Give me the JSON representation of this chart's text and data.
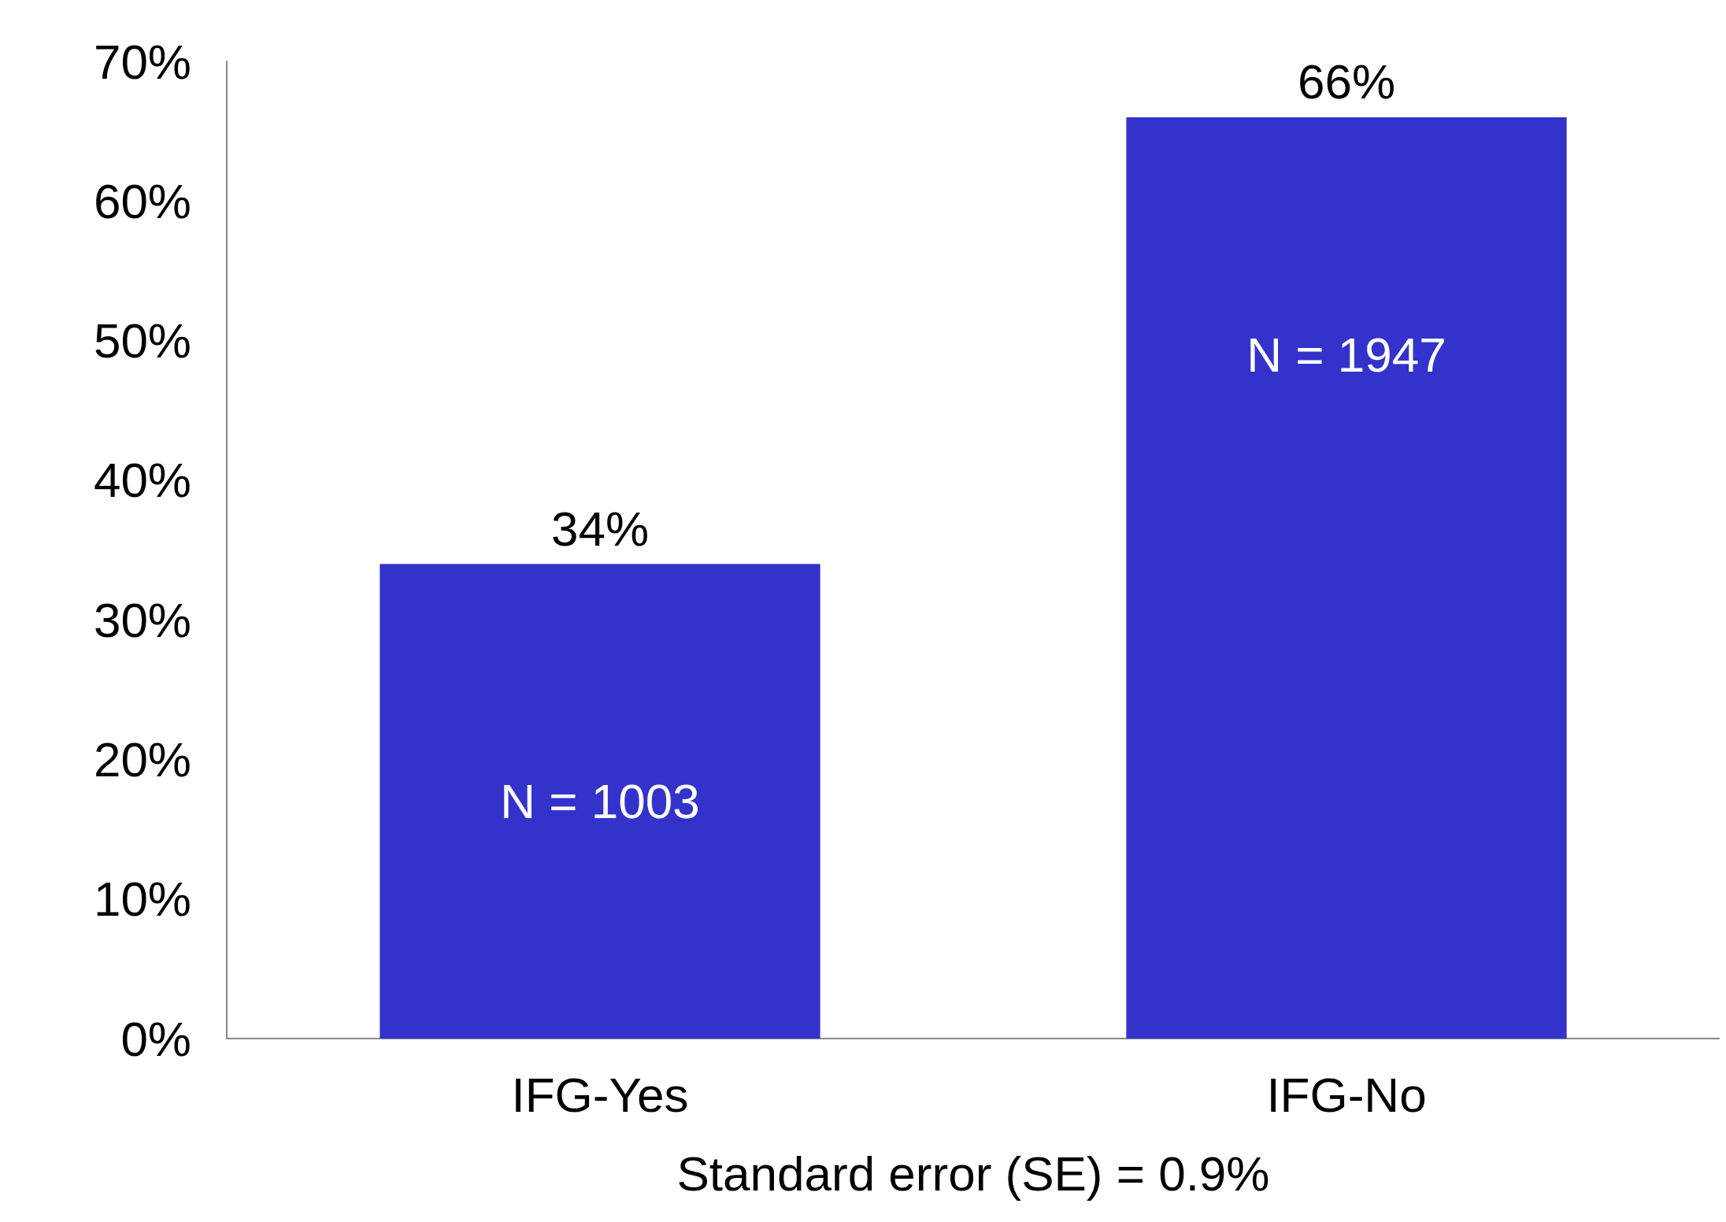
{
  "chart_data": {
    "type": "bar",
    "categories": [
      "IFG-Yes",
      "IFG-No"
    ],
    "values": [
      34,
      66
    ],
    "value_labels": [
      "34%",
      "66%"
    ],
    "color": "#3333cc",
    "xlabel": "Standard error (SE) = 0.9%",
    "ylim": [
      0,
      70
    ],
    "yticks": [
      {
        "value": 0,
        "label": "0%"
      },
      {
        "value": 10,
        "label": "10%"
      },
      {
        "value": 20,
        "label": "20%"
      },
      {
        "value": 30,
        "label": "30%"
      },
      {
        "value": 40,
        "label": "40%"
      },
      {
        "value": 50,
        "label": "50%"
      },
      {
        "value": 60,
        "label": "60%"
      },
      {
        "value": 70,
        "label": "70%"
      }
    ],
    "annotations": [
      {
        "text": "N = 1003",
        "x": "IFG-Yes",
        "y": 17
      },
      {
        "text": "N = 1947",
        "x": "IFG-No",
        "y": 49
      }
    ],
    "grid": false
  }
}
